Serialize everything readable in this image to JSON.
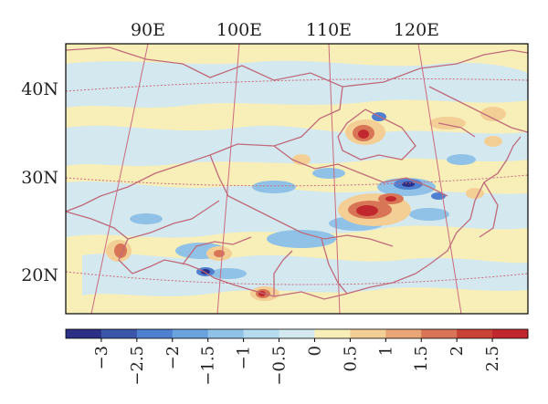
{
  "map": {
    "longitude_labels": [
      "90E",
      "100E",
      "110E",
      "120E"
    ],
    "latitude_labels": [
      "40N",
      "30N",
      "20N"
    ],
    "colors": {
      "background": "#f8efb8",
      "country_border": "#c06a7a",
      "graticule": "#c96a7f",
      "frame": "#000000"
    }
  },
  "colorbar": {
    "labels": [
      "−3",
      "−2.5",
      "−2",
      "−1.5",
      "−1",
      "−0.5",
      "0",
      "0.5",
      "1",
      "1.5",
      "2",
      "2.5"
    ],
    "colors": [
      "#2b2f86",
      "#3b55a8",
      "#4f7fcf",
      "#6aa3dd",
      "#8fc2e6",
      "#b5dcef",
      "#d3e8ef",
      "#f8efb8",
      "#f3cf96",
      "#e8a575",
      "#d87556",
      "#c84336",
      "#c0282e"
    ]
  }
}
